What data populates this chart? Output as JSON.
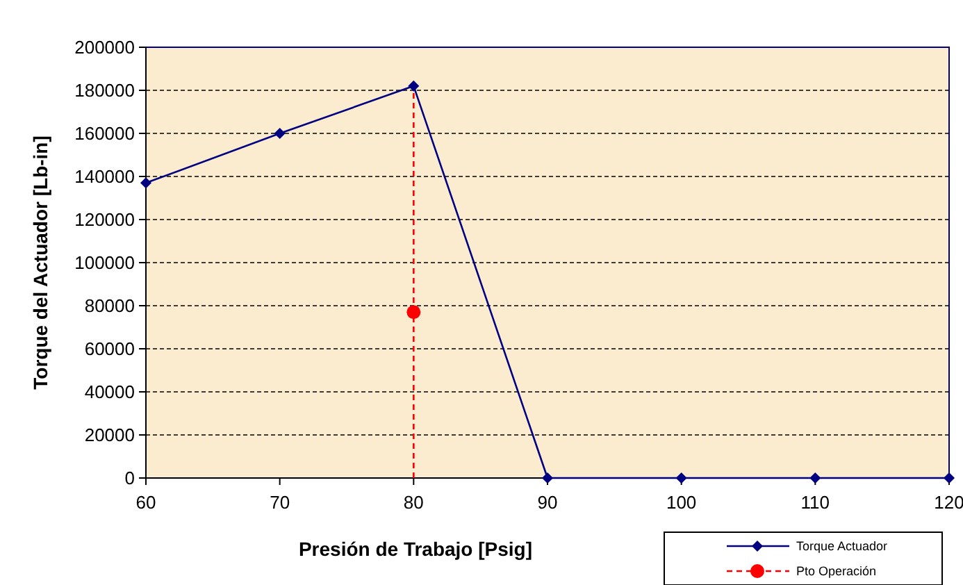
{
  "chart_data": {
    "type": "line",
    "xlabel": "Presión de Trabajo [Psig]",
    "ylabel": "Torque del Actuador [Lb-in]",
    "xlim": [
      60,
      120
    ],
    "xticks": [
      60,
      70,
      80,
      90,
      100,
      110,
      120
    ],
    "ylim": [
      0,
      200000
    ],
    "yticks": [
      0,
      20000,
      40000,
      60000,
      80000,
      100000,
      120000,
      140000,
      160000,
      180000,
      200000
    ],
    "grid": "y",
    "legend": "bottom right",
    "series": [
      {
        "color": "#ff0000",
        "line_style": "dashed",
        "marker": "none",
        "x": [
          80,
          80
        ],
        "values": [
          0,
          182000
        ]
      },
      {
        "name": "Torque Actuador",
        "color": "#000080",
        "line_style": "solid",
        "marker": "diamond",
        "x": [
          60,
          70,
          80,
          90,
          100,
          110,
          120
        ],
        "values": [
          137000,
          160000,
          182000,
          0,
          0,
          0,
          0
        ]
      },
      {
        "name": "Pto Operación",
        "color": "#ff0000",
        "line_style": "dashed",
        "marker": "circle",
        "x": [
          80
        ],
        "values": [
          77000
        ]
      }
    ]
  }
}
